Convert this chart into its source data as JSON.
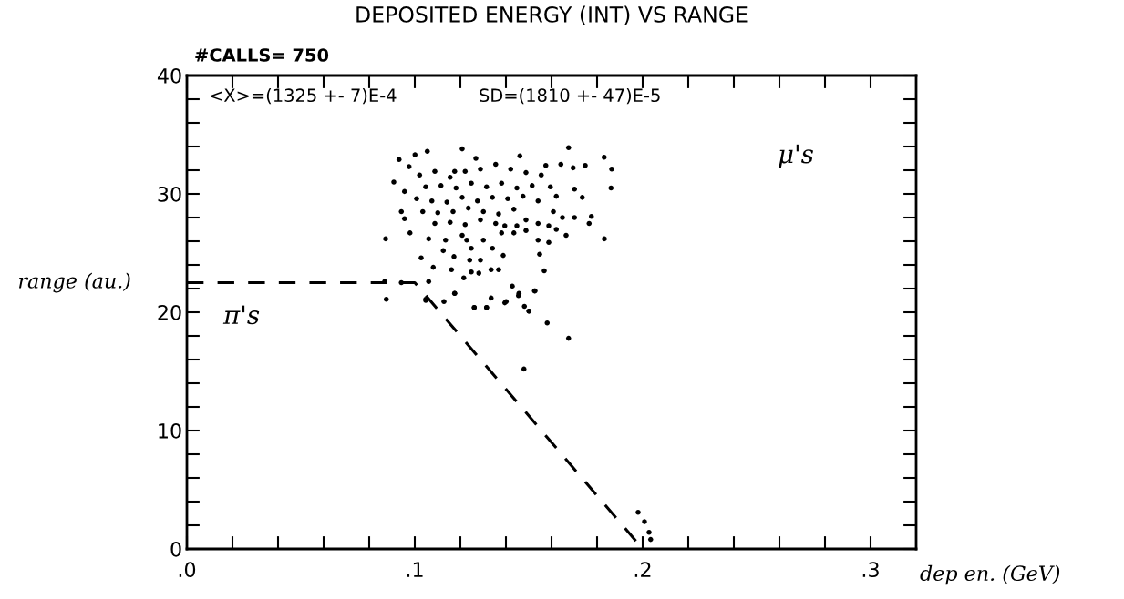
{
  "chart_data": {
    "type": "scatter",
    "title": "DEPOSITED ENERGY (INT) VS RANGE",
    "xlabel": "dep en. (GeV)",
    "ylabel": "range (au.)",
    "annotations": [
      "#CALLS= 750",
      "<X>=(1325 +- 7)E-4",
      "SD=(1810 +- 47)E-5",
      "μ's",
      "π's"
    ],
    "xlim": [
      0,
      0.32
    ],
    "ylim": [
      0,
      40
    ],
    "xticks": [
      {
        "value": 0,
        "label": ".0"
      },
      {
        "value": 0.02,
        "label": null
      },
      {
        "value": 0.04,
        "label": null
      },
      {
        "value": 0.06,
        "label": null
      },
      {
        "value": 0.08,
        "label": null
      },
      {
        "value": 0.1,
        "label": ".1"
      },
      {
        "value": 0.12,
        "label": null
      },
      {
        "value": 0.14,
        "label": null
      },
      {
        "value": 0.16,
        "label": null
      },
      {
        "value": 0.18,
        "label": null
      },
      {
        "value": 0.2,
        "label": ".2"
      },
      {
        "value": 0.22,
        "label": null
      },
      {
        "value": 0.24,
        "label": null
      },
      {
        "value": 0.26,
        "label": null
      },
      {
        "value": 0.28,
        "label": null
      },
      {
        "value": 0.3,
        "label": ".3"
      }
    ],
    "yticks": [
      0,
      {
        "value": 2,
        "label": null
      },
      {
        "value": 4,
        "label": null
      },
      {
        "value": 6,
        "label": null
      },
      {
        "value": 8,
        "label": null
      },
      10,
      {
        "value": 12,
        "label": null
      },
      {
        "value": 14,
        "label": null
      },
      {
        "value": 16,
        "label": null
      },
      {
        "value": 18,
        "label": null
      },
      20,
      {
        "value": 22,
        "label": null
      },
      {
        "value": 24,
        "label": null
      },
      {
        "value": 26,
        "label": null
      },
      {
        "value": 28,
        "label": null
      },
      30,
      {
        "value": 32,
        "label": null
      },
      {
        "value": 34,
        "label": null
      },
      {
        "value": 36,
        "label": null
      },
      {
        "value": 38,
        "label": null
      },
      40
    ],
    "grid": false,
    "marker": "circle",
    "series": [
      {
        "color": "#000000",
        "x": [
          0.1675,
          0.1831,
          0.1864,
          0.1861,
          0.1832,
          0.1208,
          0.1055,
          0.1001,
          0.0931,
          0.0872,
          0.0875,
          0.0868,
          0.0941,
          0.1061,
          0.1048,
          0.1128,
          0.1175,
          0.1261,
          0.1315,
          0.1401,
          0.1457,
          0.1501,
          0.1528,
          0.1428,
          0.1568,
          0.1548,
          0.1588,
          0.1664,
          0.1701,
          0.1765,
          0.1775,
          0.1735,
          0.1701,
          0.1748,
          0.1695,
          0.1641,
          0.1575,
          0.1461,
          0.1268,
          0.1175,
          0.0975,
          0.0908,
          0.0955,
          0.0941,
          0.0955,
          0.0979,
          0.1061,
          0.1135,
          0.1208,
          0.1125,
          0.1172,
          0.1028,
          0.1081,
          0.1161,
          0.1215,
          0.1248,
          0.1281,
          0.1241,
          0.1288,
          0.1335,
          0.1368,
          0.1388,
          0.1341,
          0.1248,
          0.1228,
          0.1301,
          0.1381,
          0.1435,
          0.1488,
          0.1541,
          0.1588,
          0.1621,
          0.1648,
          0.1608,
          0.1541,
          0.1488,
          0.1448,
          0.1021,
          0.1088,
          0.1155,
          0.1221,
          0.1288,
          0.1355,
          0.1421,
          0.1488,
          0.1555,
          0.1048,
          0.1115,
          0.1181,
          0.1248,
          0.1315,
          0.1381,
          0.1448,
          0.1515,
          0.1595,
          0.1008,
          0.1075,
          0.1141,
          0.1208,
          0.1275,
          0.1341,
          0.1408,
          0.1475,
          0.1541,
          0.1621,
          0.1035,
          0.1101,
          0.1168,
          0.1235,
          0.1301,
          0.1368,
          0.1435,
          0.1088,
          0.1155,
          0.1221,
          0.1288,
          0.1355,
          0.1395,
          0.1048,
          0.1261,
          0.1315,
          0.1395,
          0.1481,
          0.1501,
          0.1581,
          0.1675,
          0.1479,
          0.1525,
          0.1335,
          0.1175,
          0.1455,
          0.198,
          0.2008,
          0.2028,
          0.2035
        ],
        "values": [
          33.9,
          33.1,
          32.1,
          30.5,
          26.2,
          33.8,
          33.6,
          33.3,
          32.9,
          26.2,
          21.1,
          22.6,
          22.5,
          22.6,
          21.1,
          20.9,
          21.6,
          20.4,
          20.4,
          20.9,
          21.6,
          20.1,
          21.8,
          22.2,
          23.5,
          24.9,
          25.9,
          26.5,
          28.0,
          27.5,
          28.1,
          29.7,
          30.4,
          32.4,
          32.2,
          32.5,
          32.4,
          33.2,
          33.0,
          31.9,
          32.3,
          31.0,
          30.2,
          28.5,
          27.9,
          26.7,
          26.2,
          26.1,
          26.5,
          25.2,
          24.7,
          24.6,
          23.8,
          23.6,
          22.9,
          23.4,
          23.3,
          24.4,
          24.4,
          23.6,
          23.6,
          24.8,
          25.4,
          25.4,
          26.1,
          26.1,
          26.7,
          26.7,
          26.9,
          26.1,
          27.3,
          27.0,
          28.0,
          28.5,
          27.5,
          27.8,
          27.3,
          31.6,
          31.9,
          31.4,
          31.9,
          32.1,
          32.5,
          32.1,
          31.8,
          31.6,
          30.6,
          30.7,
          30.5,
          30.9,
          30.6,
          30.9,
          30.5,
          30.7,
          30.6,
          29.6,
          29.4,
          29.3,
          29.7,
          29.4,
          29.7,
          29.6,
          29.8,
          29.4,
          29.8,
          28.5,
          28.4,
          28.5,
          28.8,
          28.5,
          28.3,
          28.7,
          27.5,
          27.6,
          27.4,
          27.8,
          27.5,
          27.3,
          21.0,
          20.4,
          20.4,
          20.8,
          20.5,
          20.1,
          19.1,
          17.8,
          15.2,
          21.8,
          21.2,
          21.6,
          21.4,
          3.1,
          2.3,
          1.4,
          0.8
        ]
      },
      {
        "type": "line",
        "color": "#000000",
        "line_style": "dashed",
        "marker": "none",
        "x": [
          0,
          0.1,
          0.2
        ],
        "values": [
          22.5,
          22.5,
          0
        ]
      }
    ]
  }
}
